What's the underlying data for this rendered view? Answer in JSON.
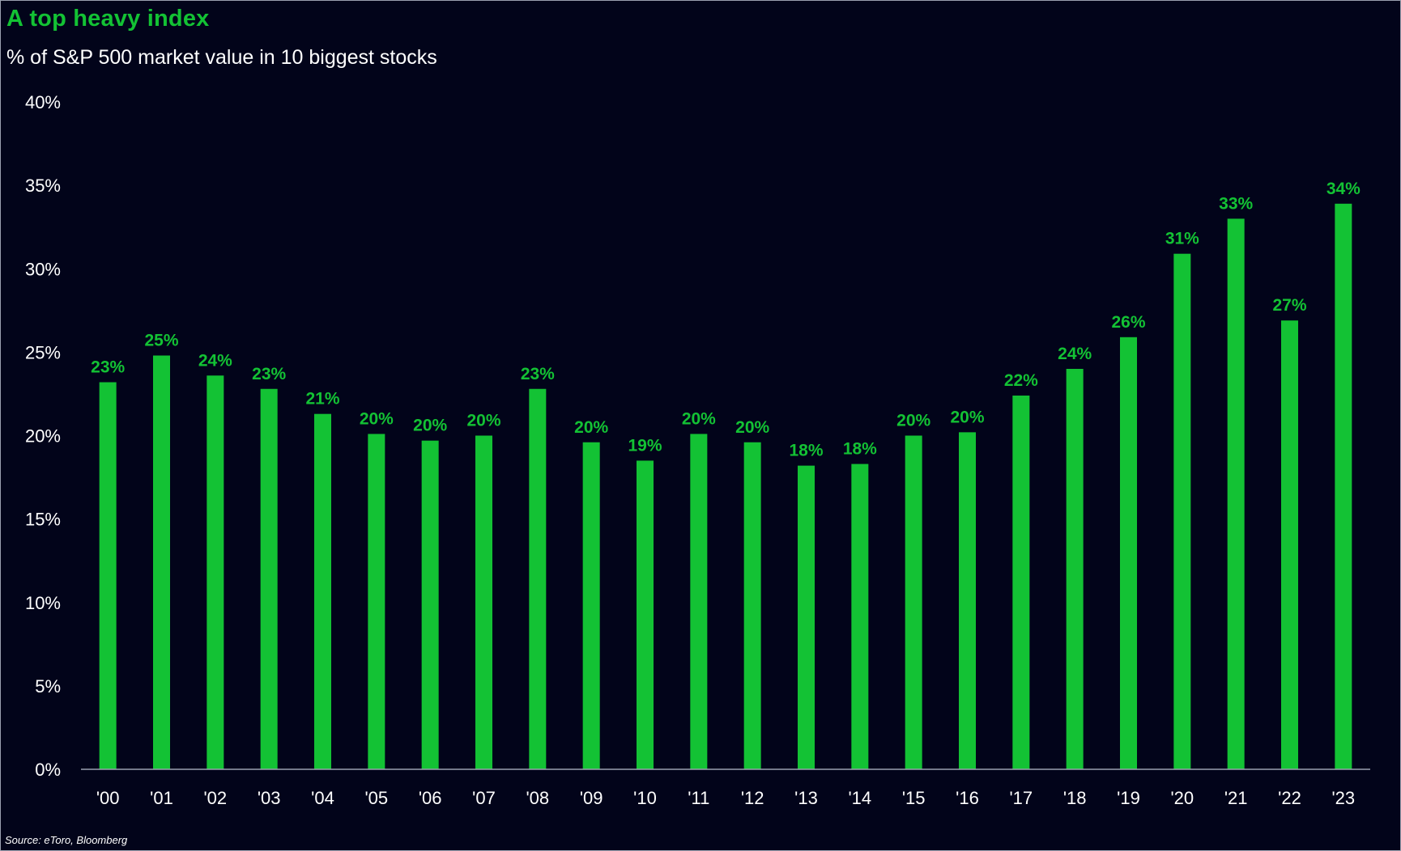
{
  "chart_data": {
    "type": "bar",
    "title": "A top heavy index",
    "subtitle": "% of S&P 500 market value in 10 biggest stocks",
    "source": "Source: eToro, Bloomberg",
    "categories": [
      "'00",
      "'01",
      "'02",
      "'03",
      "'04",
      "'05",
      "'06",
      "'07",
      "'08",
      "'09",
      "'10",
      "'11",
      "'12",
      "'13",
      "'14",
      "'15",
      "'16",
      "'17",
      "'18",
      "'19",
      "'20",
      "'21",
      "'22",
      "'23"
    ],
    "values": [
      23.2,
      24.8,
      23.6,
      22.8,
      21.3,
      20.1,
      19.7,
      20.0,
      22.8,
      19.6,
      18.5,
      20.1,
      19.6,
      18.2,
      18.3,
      20.0,
      20.2,
      22.4,
      24.0,
      25.9,
      30.9,
      33.0,
      26.9,
      33.9
    ],
    "data_labels": [
      "23%",
      "25%",
      "24%",
      "23%",
      "21%",
      "20%",
      "20%",
      "20%",
      "23%",
      "20%",
      "19%",
      "20%",
      "20%",
      "18%",
      "18%",
      "20%",
      "20%",
      "22%",
      "24%",
      "26%",
      "31%",
      "33%",
      "27%",
      "34%"
    ],
    "xlabel": "",
    "ylabel": "",
    "ylim": [
      0,
      40
    ],
    "y_ticks": [
      0,
      5,
      10,
      15,
      20,
      25,
      30,
      35,
      40
    ],
    "y_tick_labels": [
      "0%",
      "5%",
      "10%",
      "15%",
      "20%",
      "25%",
      "30%",
      "35%",
      "40%"
    ],
    "grid": false,
    "legend": "none",
    "colors": {
      "background": "#02041a",
      "bar": "#13c234",
      "text": "#ffffff",
      "title": "#13c234",
      "axis": "#9aa0b0"
    }
  }
}
